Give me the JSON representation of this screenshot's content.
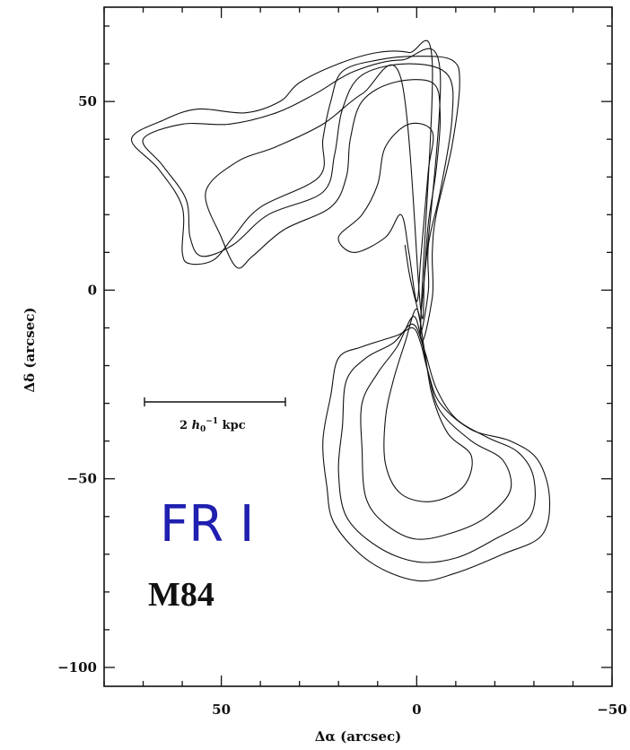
{
  "chart_data": {
    "type": "contour",
    "xlabel": "Δα (arcsec)",
    "ylabel": "Δδ (arcsec)",
    "xlim": [
      80,
      -50
    ],
    "ylim": [
      -105,
      75
    ],
    "x_ticks": [
      50,
      0,
      -50
    ],
    "y_ticks": [
      50,
      0,
      -50,
      -100
    ],
    "x_tick_labels": [
      "50",
      "0",
      "−50"
    ],
    "y_tick_labels": [
      "50",
      "0",
      "−50",
      "−100"
    ],
    "grid": false,
    "annotations": {
      "class_label": "FR I",
      "object_label": "M84",
      "scale_bar_label_prefix": "2 ",
      "scale_bar_label_h": "h",
      "scale_bar_label_sub": "0",
      "scale_bar_label_sup": "−1",
      "scale_bar_label_suffix": " kpc"
    },
    "scale_bar": {
      "x_start": 72,
      "x_end": 35,
      "y": -30
    },
    "contour_levels": [
      {
        "name": "level-1",
        "points": [
          [
            -1,
            -10
          ],
          [
            -4,
            -2
          ],
          [
            -4,
            10
          ],
          [
            -5,
            20
          ],
          [
            -9,
            38
          ],
          [
            -11,
            55
          ],
          [
            -9,
            61
          ],
          [
            0,
            62
          ],
          [
            10,
            61
          ],
          [
            19,
            58
          ],
          [
            22,
            50
          ],
          [
            24,
            40
          ],
          [
            25,
            30
          ],
          [
            40,
            22
          ],
          [
            47,
            14
          ],
          [
            52,
            8
          ],
          [
            58,
            7
          ],
          [
            60,
            10
          ],
          [
            60,
            22
          ],
          [
            66,
            32
          ],
          [
            73,
            40
          ],
          [
            65,
            45
          ],
          [
            56,
            48
          ],
          [
            44,
            47
          ],
          [
            35,
            50
          ],
          [
            30,
            55
          ],
          [
            20,
            60
          ],
          [
            10,
            63
          ],
          [
            2,
            63
          ],
          [
            -4,
            60
          ]
        ]
      },
      {
        "name": "level-1-south",
        "points": [
          [
            1,
            -10
          ],
          [
            5,
            -12
          ],
          [
            14,
            -15
          ],
          [
            20,
            -18
          ],
          [
            22,
            -28
          ],
          [
            24,
            -40
          ],
          [
            23,
            -52
          ],
          [
            21,
            -62
          ],
          [
            12,
            -72
          ],
          [
            0,
            -77
          ],
          [
            -10,
            -75
          ],
          [
            -22,
            -70
          ],
          [
            -32,
            -65
          ],
          [
            -34,
            -55
          ],
          [
            -31,
            -45
          ],
          [
            -24,
            -40
          ],
          [
            -14,
            -37
          ],
          [
            -6,
            -30
          ],
          [
            -3,
            -22
          ],
          [
            -1,
            -14
          ]
        ]
      },
      {
        "name": "level-2",
        "points": [
          [
            -1,
            -8
          ],
          [
            -3,
            0
          ],
          [
            -3,
            12
          ],
          [
            -6,
            26
          ],
          [
            -9,
            45
          ],
          [
            -8,
            57
          ],
          [
            2,
            60
          ],
          [
            14,
            57
          ],
          [
            19,
            48
          ],
          [
            21,
            36
          ],
          [
            24,
            26
          ],
          [
            38,
            20
          ],
          [
            47,
            12
          ],
          [
            55,
            9
          ],
          [
            58,
            14
          ],
          [
            59,
            24
          ],
          [
            65,
            33
          ],
          [
            70,
            40
          ],
          [
            60,
            44
          ],
          [
            48,
            44
          ],
          [
            36,
            47
          ],
          [
            26,
            52
          ],
          [
            16,
            58
          ],
          [
            4,
            61
          ],
          [
            -6,
            58
          ]
        ]
      },
      {
        "name": "level-2-south",
        "points": [
          [
            1,
            -9
          ],
          [
            6,
            -14
          ],
          [
            13,
            -18
          ],
          [
            18,
            -24
          ],
          [
            19,
            -36
          ],
          [
            20,
            -48
          ],
          [
            18,
            -60
          ],
          [
            10,
            -68
          ],
          [
            0,
            -72
          ],
          [
            -10,
            -71
          ],
          [
            -20,
            -66
          ],
          [
            -29,
            -60
          ],
          [
            -30,
            -50
          ],
          [
            -26,
            -43
          ],
          [
            -18,
            -39
          ],
          [
            -10,
            -34
          ],
          [
            -5,
            -26
          ],
          [
            -2,
            -16
          ]
        ]
      },
      {
        "name": "level-3",
        "points": [
          [
            -1,
            -5
          ],
          [
            -2,
            5
          ],
          [
            -3,
            18
          ],
          [
            -5,
            32
          ],
          [
            -6,
            47
          ],
          [
            -4,
            55
          ],
          [
            6,
            55
          ],
          [
            14,
            50
          ],
          [
            17,
            40
          ],
          [
            18,
            30
          ],
          [
            22,
            22
          ],
          [
            34,
            16
          ],
          [
            42,
            9
          ],
          [
            46,
            6
          ],
          [
            50,
            14
          ],
          [
            54,
            26
          ],
          [
            46,
            34
          ],
          [
            36,
            38
          ],
          [
            24,
            44
          ],
          [
            14,
            52
          ],
          [
            4,
            56
          ]
        ]
      },
      {
        "name": "level-3-south",
        "points": [
          [
            1,
            -7
          ],
          [
            5,
            -15
          ],
          [
            10,
            -22
          ],
          [
            14,
            -30
          ],
          [
            14,
            -42
          ],
          [
            13,
            -55
          ],
          [
            8,
            -62
          ],
          [
            0,
            -66
          ],
          [
            -10,
            -64
          ],
          [
            -18,
            -60
          ],
          [
            -24,
            -53
          ],
          [
            -22,
            -45
          ],
          [
            -14,
            -40
          ],
          [
            -6,
            -32
          ],
          [
            -3,
            -22
          ],
          [
            -1,
            -12
          ]
        ]
      },
      {
        "name": "level-4",
        "points": [
          [
            0,
            -3
          ],
          [
            -1,
            8
          ],
          [
            -2,
            20
          ],
          [
            -3,
            32
          ],
          [
            -4,
            42
          ],
          [
            2,
            44
          ],
          [
            8,
            38
          ],
          [
            10,
            28
          ],
          [
            14,
            20
          ],
          [
            20,
            14
          ],
          [
            16,
            10
          ],
          [
            8,
            14
          ],
          [
            4,
            20
          ],
          [
            2,
            10
          ]
        ]
      },
      {
        "name": "level-4-south",
        "points": [
          [
            0,
            -5
          ],
          [
            3,
            -14
          ],
          [
            6,
            -24
          ],
          [
            8,
            -34
          ],
          [
            8,
            -46
          ],
          [
            4,
            -54
          ],
          [
            -4,
            -56
          ],
          [
            -12,
            -52
          ],
          [
            -14,
            -44
          ],
          [
            -8,
            -38
          ],
          [
            -4,
            -28
          ],
          [
            -2,
            -16
          ]
        ]
      },
      {
        "name": "jet-ridge",
        "points": [
          [
            3,
            12
          ],
          [
            2,
            5
          ],
          [
            1,
            0
          ],
          [
            0,
            -4
          ],
          [
            -1,
            -9
          ],
          [
            0,
            -4
          ],
          [
            1,
            0
          ],
          [
            2,
            5
          ],
          [
            3,
            12
          ]
        ]
      }
    ]
  }
}
